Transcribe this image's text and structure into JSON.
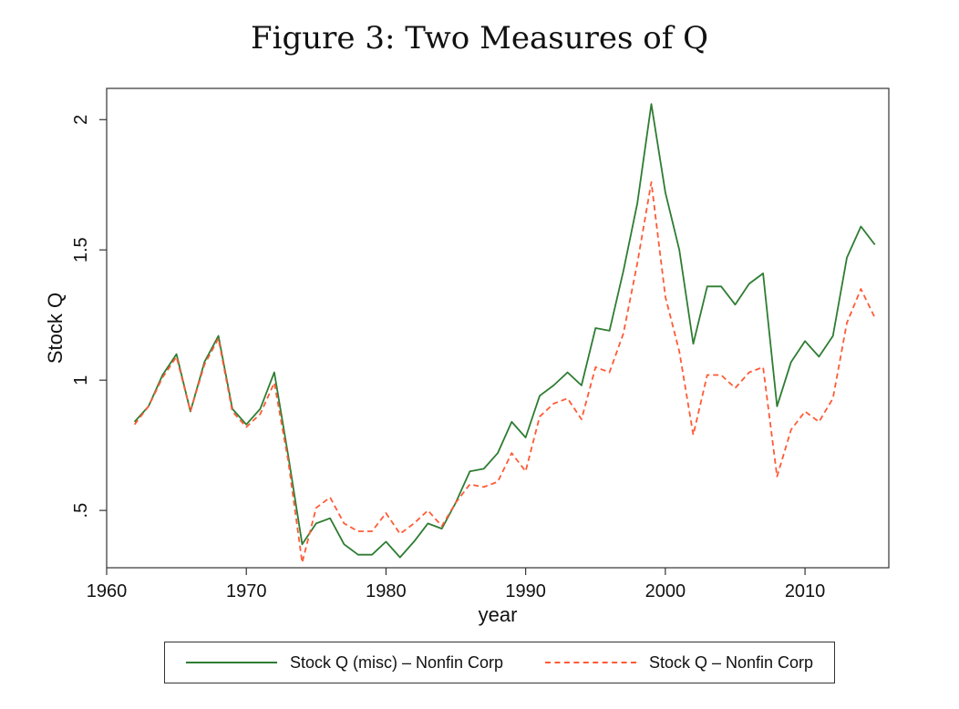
{
  "chart_data": {
    "type": "line",
    "title": "Figure 3: Two Measures of Q",
    "xlabel": "year",
    "ylabel": "Stock Q",
    "xlim": [
      1960,
      2016
    ],
    "ylim": [
      0.28,
      2.12
    ],
    "xticks": [
      1960,
      1970,
      1980,
      1990,
      2000,
      2010
    ],
    "xtick_labels": [
      "1960",
      "1970",
      "1980",
      "1990",
      "2000",
      "2010"
    ],
    "yticks": [
      0.5,
      1.0,
      1.5,
      2.0
    ],
    "ytick_labels": [
      ".5",
      "1",
      "1.5",
      "2"
    ],
    "grid": false,
    "legend_position": "bottom",
    "x": [
      1962,
      1963,
      1964,
      1965,
      1966,
      1967,
      1968,
      1969,
      1970,
      1971,
      1972,
      1973,
      1974,
      1975,
      1976,
      1977,
      1978,
      1979,
      1980,
      1981,
      1982,
      1983,
      1984,
      1985,
      1986,
      1987,
      1988,
      1989,
      1990,
      1991,
      1992,
      1993,
      1994,
      1995,
      1996,
      1997,
      1998,
      1999,
      2000,
      2001,
      2002,
      2003,
      2004,
      2005,
      2006,
      2007,
      2008,
      2009,
      2010,
      2011,
      2012,
      2013,
      2014,
      2015
    ],
    "series": [
      {
        "name": "Stock Q (misc) – Nonfin Corp",
        "color": "#2e7d32",
        "style": "solid",
        "values": [
          0.84,
          0.9,
          1.02,
          1.1,
          0.88,
          1.07,
          1.17,
          0.89,
          0.83,
          0.89,
          1.03,
          0.71,
          0.37,
          0.45,
          0.47,
          0.37,
          0.33,
          0.33,
          0.38,
          0.32,
          0.38,
          0.45,
          0.43,
          0.53,
          0.65,
          0.66,
          0.72,
          0.84,
          0.78,
          0.94,
          0.98,
          1.03,
          0.98,
          1.2,
          1.19,
          1.42,
          1.68,
          2.06,
          1.72,
          1.5,
          1.14,
          1.36,
          1.36,
          1.29,
          1.37,
          1.41,
          0.9,
          1.07,
          1.15,
          1.09,
          1.17,
          1.47,
          1.59,
          1.52
        ]
      },
      {
        "name": "Stock Q – Nonfin Corp",
        "color": "#ff5a36",
        "style": "dashed",
        "values": [
          0.83,
          0.9,
          1.01,
          1.09,
          0.88,
          1.06,
          1.16,
          0.88,
          0.82,
          0.87,
          0.99,
          0.69,
          0.3,
          0.51,
          0.55,
          0.45,
          0.42,
          0.42,
          0.49,
          0.41,
          0.45,
          0.5,
          0.44,
          0.53,
          0.6,
          0.59,
          0.61,
          0.72,
          0.65,
          0.86,
          0.91,
          0.93,
          0.85,
          1.05,
          1.03,
          1.18,
          1.45,
          1.76,
          1.32,
          1.11,
          0.79,
          1.02,
          1.02,
          0.97,
          1.03,
          1.05,
          0.63,
          0.81,
          0.88,
          0.84,
          0.93,
          1.22,
          1.35,
          1.24
        ]
      }
    ]
  }
}
